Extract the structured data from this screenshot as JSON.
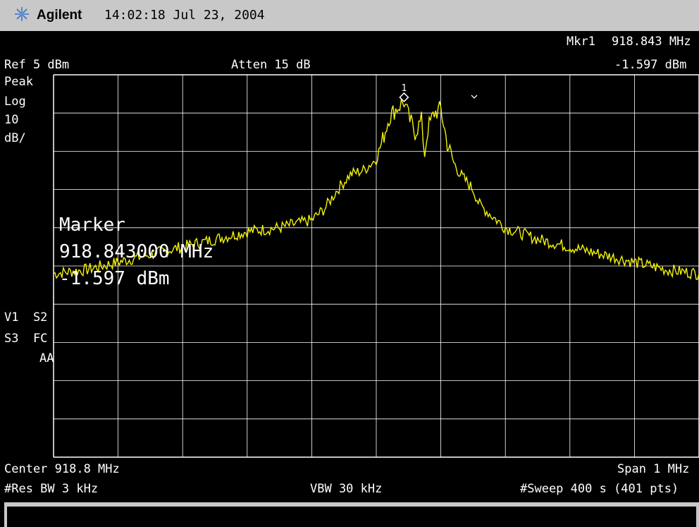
{
  "header": {
    "brand": "Agilent",
    "datetime": "14:02:18  Jul 23, 2004",
    "logo_icon": "agilent-spark-logo"
  },
  "marker": {
    "readout_label": "Mkr1",
    "readout_freq": "918.843 MHz",
    "readout_amp": "-1.597 dBm",
    "marker_number": "1",
    "overlay_label": "Marker",
    "overlay_freq": "918.843000 MHz",
    "overlay_amp": "-1.597 dBm"
  },
  "settings": {
    "ref_level": "Ref 5 dBm",
    "attenuation": "Atten 15 dB",
    "detector": "Peak",
    "scale_type": "Log",
    "scale_value": "10",
    "scale_unit": "dB/",
    "flags_line1": "V1  S2",
    "flags_line2": "S3  FC",
    "flags_line3": "AA",
    "center": "Center 918.8 MHz",
    "span": "Span 1 MHz",
    "res_bw": "#Res BW 3 kHz",
    "vbw": "VBW 30 kHz",
    "sweep": "#Sweep 400 s (401 pts)"
  },
  "colors": {
    "trace": "#f2f20a",
    "grid": "#ffffff",
    "background": "#000000",
    "titlebar": "#c8c8c8"
  },
  "chart_data": {
    "type": "line",
    "x_units": "MHz",
    "y_units": "dBm",
    "xlim": [
      918.3,
      919.3
    ],
    "ylim": [
      -95,
      5
    ],
    "grid": true,
    "x": [
      918.3,
      918.35,
      918.4,
      918.45,
      918.5,
      918.55,
      918.6,
      918.65,
      918.7,
      918.72,
      918.74,
      918.76,
      918.78,
      918.8,
      918.81,
      918.82,
      918.83,
      918.843,
      918.85,
      918.86,
      918.87,
      918.875,
      918.88,
      918.89,
      918.9,
      918.91,
      918.92,
      918.93,
      918.94,
      918.95,
      918.96,
      918.98,
      919.0,
      919.05,
      919.1,
      919.15,
      919.2,
      919.25,
      919.3
    ],
    "y": [
      -47,
      -46,
      -44,
      -42,
      -40,
      -38,
      -36,
      -35,
      -33,
      -30,
      -25,
      -21,
      -20,
      -17,
      -12,
      -6,
      -4,
      -2,
      -6,
      -10,
      -7,
      -16,
      -9,
      -5,
      -4,
      -13,
      -18,
      -21,
      -23,
      -25,
      -29,
      -32,
      -35,
      -38,
      -40,
      -42,
      -44,
      -46,
      -47
    ]
  }
}
